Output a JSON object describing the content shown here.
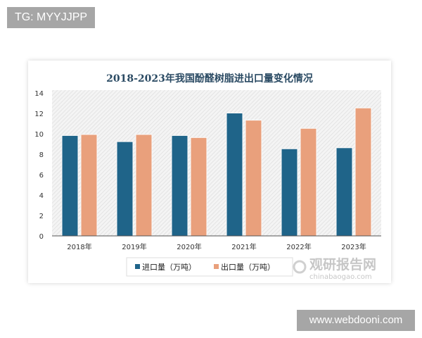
{
  "overlay": {
    "tg_label": "TG: MYYJJPP",
    "site_label": "www.webdooni.com"
  },
  "watermark": {
    "name": "观研报告网",
    "url": "chinabaogao.com"
  },
  "chart_data": {
    "type": "bar",
    "title": "2018-2023年我国酚醛树脂进出口量变化情况",
    "categories": [
      "2018年",
      "2019年",
      "2020年",
      "2021年",
      "2022年",
      "2023年"
    ],
    "series": [
      {
        "name": "进口量（万吨）",
        "color": "#1f6489",
        "values": [
          9.8,
          9.2,
          9.8,
          12.0,
          8.5,
          8.6
        ]
      },
      {
        "name": "出口量（万吨）",
        "color": "#e9a07c",
        "values": [
          9.9,
          9.9,
          9.6,
          11.3,
          10.5,
          12.5
        ]
      }
    ],
    "ylim": [
      0,
      14
    ],
    "yticks": [
      0,
      2,
      4,
      6,
      8,
      10,
      12,
      14
    ],
    "grid": false,
    "legend": "bottom-center",
    "background": "hatched-gray"
  }
}
